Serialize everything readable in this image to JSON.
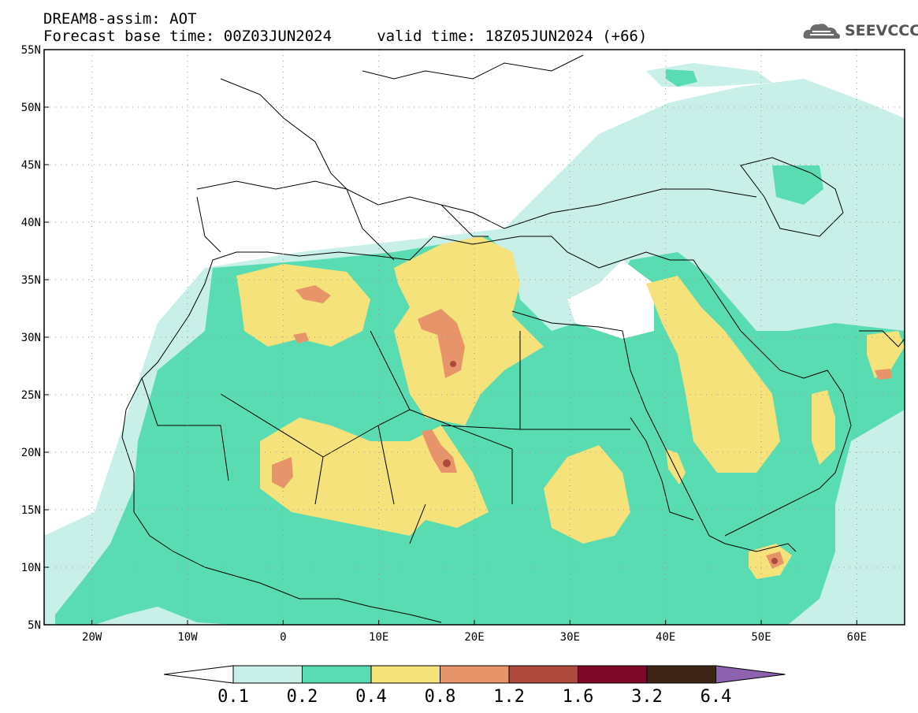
{
  "header": {
    "line1": "DREAM8-assim: AOT",
    "line2": "Forecast base time: 00Z03JUN2024     valid time: 18Z05JUN2024 (+66)"
  },
  "logo": {
    "text": "SEEVCCC",
    "icon": "cloud-icon"
  },
  "map": {
    "lon_range": [
      -25,
      65
    ],
    "lat_range": [
      5,
      55
    ],
    "lat_labels": [
      "55N",
      "50N",
      "45N",
      "40N",
      "35N",
      "30N",
      "25N",
      "20N",
      "15N",
      "10N",
      "5N"
    ],
    "lon_labels": [
      "20W",
      "10W",
      "0",
      "10E",
      "20E",
      "30E",
      "40E",
      "50E",
      "60E"
    ],
    "grid": true
  },
  "colorbar": {
    "labels": [
      "0.1",
      "0.2",
      "0.4",
      "0.8",
      "1.2",
      "1.6",
      "3.2",
      "6.4"
    ],
    "colors": [
      "#ffffff",
      "#c8f0e8",
      "#5adcb2",
      "#f5e27a",
      "#e8946a",
      "#ad4a3c",
      "#7d0a2a",
      "#3e2415",
      "#8c62b0"
    ]
  },
  "chart_data": {
    "type": "heatmap",
    "variable": "AOT",
    "levels": [
      0.1,
      0.2,
      0.4,
      0.8,
      1.2,
      1.6,
      3.2,
      6.4
    ],
    "xlim": [
      -25,
      65
    ],
    "ylim": [
      5,
      55
    ]
  }
}
